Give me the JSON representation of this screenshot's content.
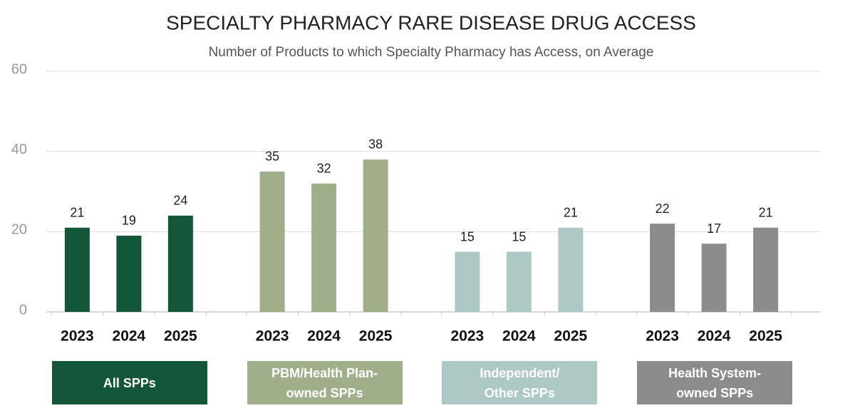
{
  "chart_data": {
    "type": "bar",
    "title": "SPECIALTY PHARMACY RARE DISEASE DRUG ACCESS",
    "subtitle": "Number of Products to which Specialty Pharmacy has Access, on Average",
    "categories": [
      "2023",
      "2024",
      "2025"
    ],
    "series": [
      {
        "name": "All SPPs",
        "color": "#12573a",
        "values": [
          21,
          19,
          24
        ]
      },
      {
        "name": "PBM/Health Plan-\nowned SPPs",
        "color": "#a1ae8a",
        "values": [
          35,
          32,
          38
        ]
      },
      {
        "name": "Independent/\nOther SPPs",
        "color": "#adc9c5",
        "values": [
          15,
          15,
          21
        ]
      },
      {
        "name": "Health System-\nowned SPPs",
        "color": "#8c8c8c",
        "values": [
          22,
          17,
          21
        ]
      }
    ],
    "ylim": [
      0,
      60
    ],
    "yticks": [
      0,
      20,
      40,
      60
    ],
    "grid": true
  }
}
